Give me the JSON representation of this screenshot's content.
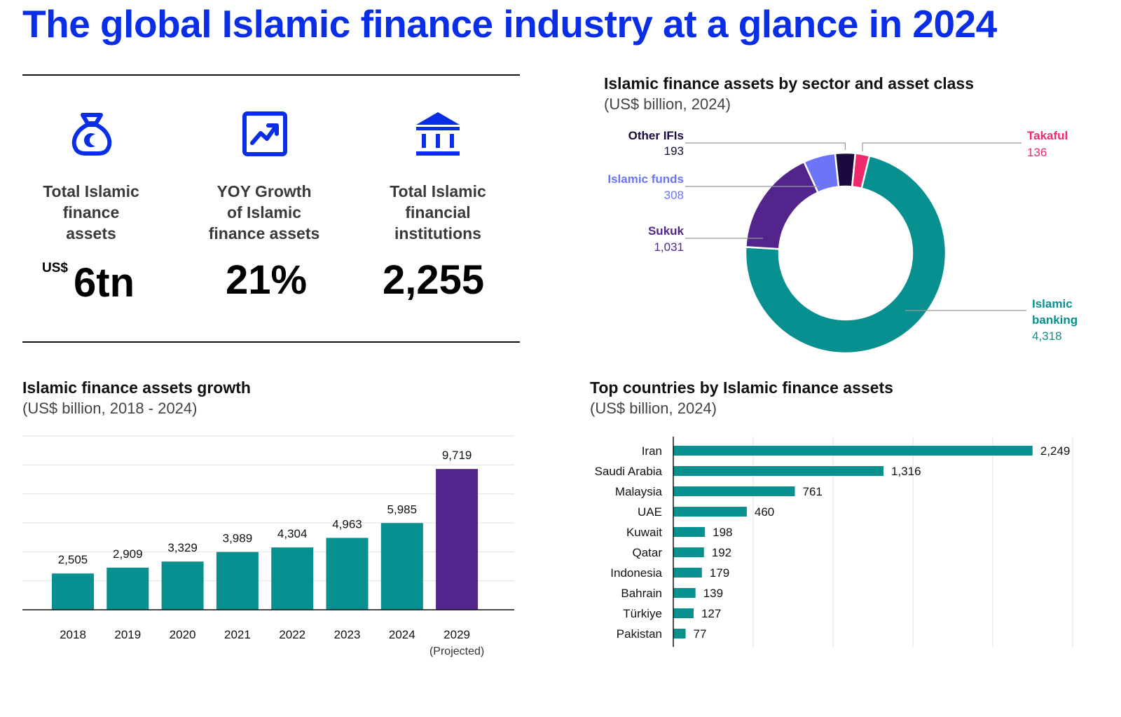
{
  "page": {
    "title": "The global Islamic finance industry at a glance in 2024"
  },
  "colors": {
    "title": "#0a2ee6",
    "teal": "#088f8f",
    "purple": "#52248c",
    "periwinkle": "#6c74f7",
    "dark_navy": "#1a0a3d",
    "pink": "#ee2a6d"
  },
  "kpis": [
    {
      "icon": "money-bag-icon",
      "label_lines": [
        "Total Islamic",
        "finance",
        "assets"
      ],
      "prefix": "US$",
      "value": "6tn"
    },
    {
      "icon": "growth-chart-icon",
      "label_lines": [
        "YOY Growth",
        "of Islamic",
        "finance assets"
      ],
      "prefix": "",
      "value": "21%"
    },
    {
      "icon": "bank-building-icon",
      "label_lines": [
        "Total Islamic",
        "financial",
        "institutions"
      ],
      "prefix": "",
      "value": "2,255"
    }
  ],
  "chart_data": [
    {
      "type": "pie",
      "title": "Islamic finance assets by sector and asset class",
      "subtitle": "(US$ billion, 2024)",
      "slices": [
        {
          "label": "Islamic banking",
          "value": 4318,
          "value_label": "4,318",
          "color": "#088f8f"
        },
        {
          "label": "Sukuk",
          "value": 1031,
          "value_label": "1,031",
          "color": "#52248c"
        },
        {
          "label": "Islamic funds",
          "value": 308,
          "value_label": "308",
          "color": "#6c74f7"
        },
        {
          "label": "Other IFIs",
          "value": 193,
          "value_label": "193",
          "color": "#1a0a3d"
        },
        {
          "label": "Takaful",
          "value": 136,
          "value_label": "136",
          "color": "#ee2a6d"
        }
      ]
    },
    {
      "type": "bar",
      "title": "Islamic finance assets growth",
      "subtitle": "(US$ billion, 2018 - 2024)",
      "categories": [
        "2018",
        "2019",
        "2020",
        "2021",
        "2022",
        "2023",
        "2024",
        "2029"
      ],
      "category_notes": [
        "",
        "",
        "",
        "",
        "",
        "",
        "",
        "(Projected)"
      ],
      "values": [
        2505,
        2909,
        3329,
        3989,
        4304,
        4963,
        5985,
        9719
      ],
      "value_labels": [
        "2,505",
        "2,909",
        "3,329",
        "3,989",
        "4,304",
        "4,963",
        "5,985",
        "9,719"
      ],
      "colors": [
        "#088f8f",
        "#088f8f",
        "#088f8f",
        "#088f8f",
        "#088f8f",
        "#088f8f",
        "#088f8f",
        "#52248c"
      ],
      "ylim": [
        0,
        12000
      ],
      "grid": true
    },
    {
      "type": "bar",
      "orientation": "horizontal",
      "title": "Top countries by Islamic finance assets",
      "subtitle": "(US$ billion, 2024)",
      "categories": [
        "Iran",
        "Saudi Arabia",
        "Malaysia",
        "UAE",
        "Kuwait",
        "Qatar",
        "Indonesia",
        "Bahrain",
        "Türkiye",
        "Pakistan"
      ],
      "values": [
        2249,
        1316,
        761,
        460,
        198,
        192,
        179,
        139,
        127,
        77
      ],
      "value_labels": [
        "2,249",
        "1,316",
        "761",
        "460",
        "198",
        "192",
        "179",
        "139",
        "127",
        "77"
      ],
      "color": "#088f8f",
      "xlim": [
        0,
        2500
      ],
      "grid": true
    }
  ]
}
